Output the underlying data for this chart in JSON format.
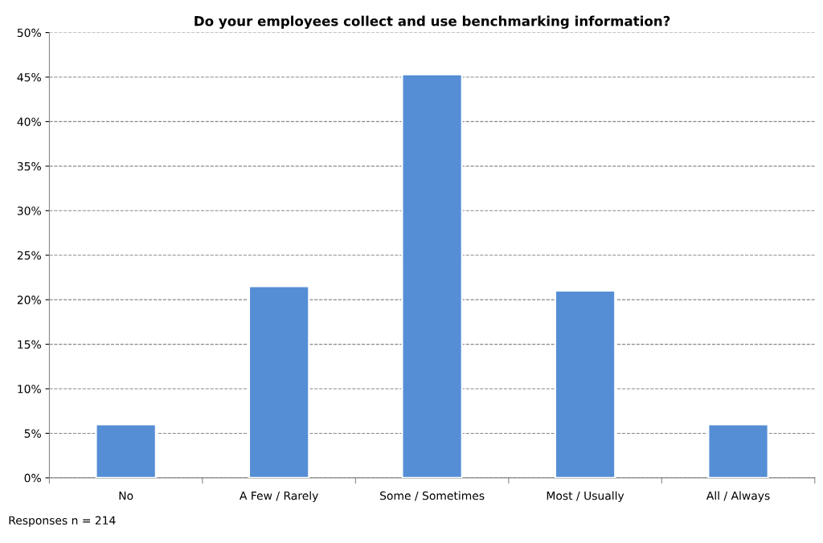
{
  "chart_data": {
    "type": "bar",
    "title": "Do your employees collect and use benchmarking information?",
    "categories": [
      "No",
      "A Few / Rarely",
      "Some / Sometimes",
      "Most / Usually",
      "All / Always"
    ],
    "values": [
      6,
      21.5,
      45.3,
      21,
      6
    ],
    "color": "#558ed5",
    "ylim": [
      0,
      50
    ],
    "yticks": [
      {
        "value": 0,
        "label": "0%"
      },
      {
        "value": 5,
        "label": "5%"
      },
      {
        "value": 10,
        "label": "10%"
      },
      {
        "value": 15,
        "label": "15%"
      },
      {
        "value": 20,
        "label": "20%"
      },
      {
        "value": 25,
        "label": "25%"
      },
      {
        "value": 30,
        "label": "30%"
      },
      {
        "value": 35,
        "label": "35%"
      },
      {
        "value": 40,
        "label": "40%"
      },
      {
        "value": 45,
        "label": "45%"
      },
      {
        "value": 50,
        "label": "50%"
      }
    ],
    "grid": "y",
    "legend": false,
    "annotations": [
      "Responses n = 214"
    ]
  }
}
